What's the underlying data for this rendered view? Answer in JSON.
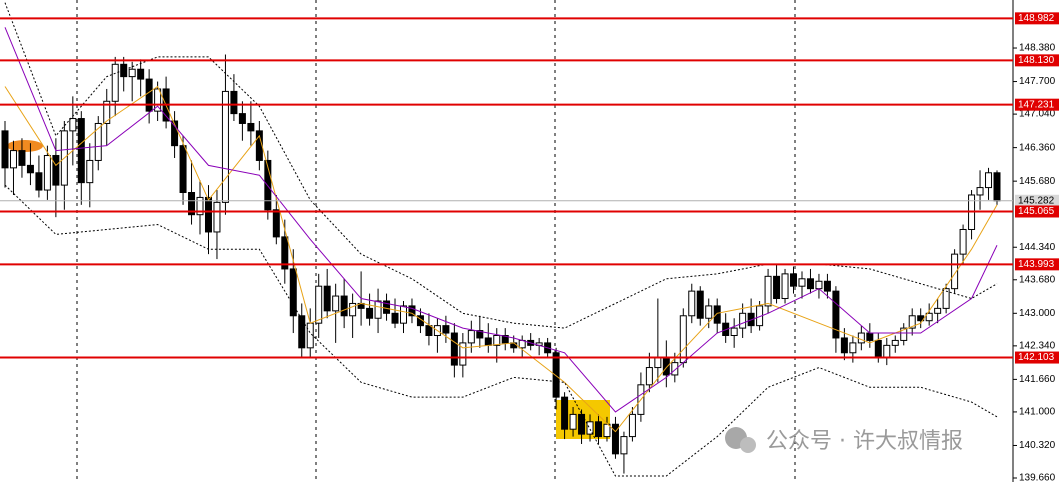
{
  "chart_data": {
    "type": "candlestick",
    "ylim": [
      139.579,
      149.354
    ],
    "yticks": [
      {
        "value": 148.38,
        "label": "148.380"
      },
      {
        "value": 147.7,
        "label": "147.700"
      },
      {
        "value": 147.04,
        "label": "147.040"
      },
      {
        "value": 146.36,
        "label": "146.360"
      },
      {
        "value": 145.68,
        "label": "145.680"
      },
      {
        "value": 144.34,
        "label": "144.340"
      },
      {
        "value": 143.68,
        "label": "143.680"
      },
      {
        "value": 143.0,
        "label": "143.000"
      },
      {
        "value": 142.34,
        "label": "142.340"
      },
      {
        "value": 141.66,
        "label": "141.660"
      },
      {
        "value": 141.0,
        "label": "141.000"
      },
      {
        "value": 140.32,
        "label": "140.320"
      },
      {
        "value": 139.66,
        "label": "139.660"
      }
    ],
    "levels": [
      {
        "value": 148.982,
        "label": "148.982"
      },
      {
        "value": 148.13,
        "label": "148.130"
      },
      {
        "value": 147.231,
        "label": "147.231"
      },
      {
        "value": 145.065,
        "label": "145.065"
      },
      {
        "value": 143.993,
        "label": "143.993"
      },
      {
        "value": 142.103,
        "label": "142.103"
      }
    ],
    "level_color": "#e00000",
    "current_price": {
      "value": 145.282,
      "label": "145.282"
    },
    "bull_color": "#ffffff",
    "bear_color": "#000000",
    "ohlc": [
      [
        146.7,
        146.9,
        145.55,
        145.95
      ],
      [
        145.95,
        146.5,
        145.4,
        146.3
      ],
      [
        146.3,
        146.55,
        145.75,
        146.0
      ],
      [
        146.0,
        146.45,
        145.6,
        145.85
      ],
      [
        145.85,
        146.2,
        145.35,
        145.5
      ],
      [
        145.5,
        146.4,
        145.3,
        146.2
      ],
      [
        146.2,
        146.55,
        144.95,
        145.6
      ],
      [
        145.6,
        146.9,
        145.1,
        146.7
      ],
      [
        146.7,
        147.4,
        146.0,
        146.95
      ],
      [
        146.95,
        147.1,
        145.2,
        145.65
      ],
      [
        145.65,
        146.45,
        145.15,
        146.1
      ],
      [
        146.1,
        147.0,
        145.9,
        146.85
      ],
      [
        146.85,
        147.55,
        146.4,
        147.3
      ],
      [
        147.3,
        148.2,
        147.0,
        148.05
      ],
      [
        148.05,
        148.2,
        147.5,
        147.8
      ],
      [
        147.8,
        148.1,
        147.3,
        147.95
      ],
      [
        147.95,
        148.15,
        147.4,
        147.75
      ],
      [
        147.75,
        147.95,
        146.85,
        147.1
      ],
      [
        147.1,
        147.7,
        146.9,
        147.55
      ],
      [
        147.55,
        147.8,
        146.75,
        146.9
      ],
      [
        146.9,
        147.1,
        146.15,
        146.4
      ],
      [
        146.4,
        146.6,
        145.2,
        145.45
      ],
      [
        145.45,
        146.1,
        144.8,
        145.0
      ],
      [
        145.0,
        145.7,
        144.6,
        145.35
      ],
      [
        145.35,
        145.6,
        144.2,
        144.65
      ],
      [
        144.65,
        145.5,
        144.1,
        145.25
      ],
      [
        145.25,
        148.25,
        145.0,
        147.5
      ],
      [
        147.5,
        147.85,
        146.9,
        147.05
      ],
      [
        147.05,
        147.3,
        146.5,
        146.85
      ],
      [
        146.85,
        147.3,
        146.4,
        146.7
      ],
      [
        146.7,
        146.9,
        145.9,
        146.1
      ],
      [
        146.1,
        146.3,
        144.9,
        145.1
      ],
      [
        145.1,
        145.4,
        144.4,
        144.55
      ],
      [
        144.55,
        144.9,
        143.6,
        143.9
      ],
      [
        143.9,
        144.3,
        142.6,
        142.95
      ],
      [
        142.95,
        143.2,
        142.1,
        142.3
      ],
      [
        142.3,
        143.1,
        142.1,
        142.8
      ],
      [
        142.8,
        143.8,
        142.5,
        143.55
      ],
      [
        143.55,
        143.9,
        142.9,
        143.05
      ],
      [
        143.05,
        143.6,
        142.4,
        143.35
      ],
      [
        143.35,
        143.7,
        142.7,
        142.95
      ],
      [
        142.95,
        143.4,
        142.5,
        143.2
      ],
      [
        143.2,
        143.85,
        142.75,
        143.1
      ],
      [
        143.1,
        143.4,
        142.75,
        142.9
      ],
      [
        142.9,
        143.5,
        142.6,
        143.25
      ],
      [
        143.25,
        143.4,
        142.85,
        143.0
      ],
      [
        143.0,
        143.3,
        142.7,
        142.8
      ],
      [
        142.8,
        143.25,
        142.6,
        143.15
      ],
      [
        143.15,
        143.3,
        142.8,
        142.95
      ],
      [
        142.95,
        143.1,
        142.6,
        142.75
      ],
      [
        142.75,
        143.0,
        142.35,
        142.55
      ],
      [
        142.55,
        142.9,
        142.2,
        142.75
      ],
      [
        142.75,
        142.95,
        142.4,
        142.6
      ],
      [
        142.6,
        142.8,
        141.7,
        141.95
      ],
      [
        141.95,
        142.6,
        141.7,
        142.4
      ],
      [
        142.4,
        142.85,
        142.2,
        142.65
      ],
      [
        142.65,
        142.95,
        142.3,
        142.5
      ],
      [
        142.5,
        142.8,
        142.2,
        142.35
      ],
      [
        142.35,
        142.7,
        142.0,
        142.55
      ],
      [
        142.55,
        142.7,
        142.25,
        142.4
      ],
      [
        142.4,
        142.55,
        142.2,
        142.3
      ],
      [
        142.3,
        142.55,
        142.1,
        142.45
      ],
      [
        142.45,
        142.6,
        142.25,
        142.35
      ],
      [
        142.35,
        142.5,
        142.15,
        142.4
      ],
      [
        142.4,
        142.5,
        142.1,
        142.2
      ],
      [
        142.2,
        142.3,
        141.05,
        141.3
      ],
      [
        141.3,
        141.4,
        140.45,
        140.65
      ],
      [
        140.65,
        141.1,
        140.5,
        140.95
      ],
      [
        140.95,
        141.05,
        140.35,
        140.55
      ],
      [
        140.55,
        140.95,
        140.4,
        140.8
      ],
      [
        140.8,
        140.95,
        140.35,
        140.5
      ],
      [
        140.5,
        140.9,
        140.4,
        140.75
      ],
      [
        140.75,
        140.9,
        140.05,
        140.15
      ],
      [
        140.15,
        140.6,
        139.75,
        140.5
      ],
      [
        140.5,
        141.1,
        140.4,
        140.95
      ],
      [
        140.95,
        141.8,
        140.8,
        141.55
      ],
      [
        141.55,
        142.2,
        141.4,
        141.9
      ],
      [
        141.9,
        143.3,
        141.6,
        142.1
      ],
      [
        142.1,
        142.45,
        141.5,
        141.75
      ],
      [
        141.75,
        142.2,
        141.6,
        142.0
      ],
      [
        142.0,
        143.1,
        141.9,
        142.95
      ],
      [
        142.95,
        143.6,
        142.8,
        143.45
      ],
      [
        143.45,
        143.55,
        142.75,
        142.9
      ],
      [
        142.9,
        143.3,
        142.7,
        143.15
      ],
      [
        143.15,
        143.3,
        142.6,
        142.8
      ],
      [
        142.8,
        143.0,
        142.4,
        142.55
      ],
      [
        142.55,
        142.9,
        142.3,
        142.7
      ],
      [
        142.7,
        143.2,
        142.5,
        143.0
      ],
      [
        143.0,
        143.3,
        142.6,
        142.75
      ],
      [
        142.75,
        143.25,
        142.65,
        143.15
      ],
      [
        143.15,
        143.9,
        143.0,
        143.75
      ],
      [
        143.75,
        144.0,
        143.2,
        143.3
      ],
      [
        143.3,
        143.9,
        143.2,
        143.8
      ],
      [
        143.8,
        143.95,
        143.4,
        143.55
      ],
      [
        143.55,
        143.85,
        143.3,
        143.7
      ],
      [
        143.7,
        143.9,
        143.4,
        143.5
      ],
      [
        143.5,
        143.8,
        143.3,
        143.65
      ],
      [
        143.65,
        143.8,
        143.3,
        143.45
      ],
      [
        143.45,
        143.55,
        142.2,
        142.5
      ],
      [
        142.5,
        142.7,
        142.05,
        142.2
      ],
      [
        142.2,
        142.55,
        142.0,
        142.4
      ],
      [
        142.4,
        142.75,
        142.25,
        142.6
      ],
      [
        142.6,
        142.8,
        142.3,
        142.45
      ],
      [
        142.45,
        142.6,
        142.0,
        142.1
      ],
      [
        142.1,
        142.5,
        141.95,
        142.35
      ],
      [
        142.35,
        142.55,
        142.2,
        142.45
      ],
      [
        142.45,
        142.8,
        142.35,
        142.7
      ],
      [
        142.7,
        143.1,
        142.55,
        142.95
      ],
      [
        142.95,
        143.1,
        142.7,
        142.85
      ],
      [
        142.85,
        143.2,
        142.75,
        143.0
      ],
      [
        143.0,
        143.3,
        142.8,
        143.1
      ],
      [
        143.1,
        143.6,
        143.0,
        143.5
      ],
      [
        143.5,
        144.3,
        143.4,
        144.2
      ],
      [
        144.2,
        144.8,
        144.0,
        144.7
      ],
      [
        144.7,
        145.5,
        144.5,
        145.4
      ],
      [
        145.4,
        145.9,
        145.1,
        145.55
      ],
      [
        145.55,
        145.95,
        145.3,
        145.85
      ],
      [
        145.85,
        145.9,
        145.2,
        145.282
      ]
    ],
    "indicators": [
      {
        "color": "#e8a317",
        "style": "solid",
        "x": [
          0,
          6,
          12,
          18,
          24,
          30,
          36,
          42,
          48,
          54,
          60,
          66,
          72,
          78,
          84,
          90,
          96,
          102,
          108,
          114,
          117
        ],
        "values": [
          147.6,
          146.0,
          146.9,
          147.6,
          145.3,
          146.6,
          142.8,
          143.2,
          143.0,
          142.3,
          142.4,
          141.6,
          140.6,
          141.9,
          143.0,
          143.2,
          142.8,
          142.4,
          142.8,
          144.3,
          145.2
        ]
      },
      {
        "color": "#8a00b8",
        "style": "solid",
        "x": [
          0,
          6,
          12,
          18,
          24,
          30,
          36,
          42,
          48,
          54,
          60,
          66,
          72,
          78,
          84,
          90,
          96,
          102,
          108,
          114,
          117
        ],
        "values": [
          148.8,
          146.3,
          146.4,
          147.2,
          146.0,
          145.8,
          144.5,
          143.3,
          143.1,
          142.7,
          142.5,
          142.2,
          141.0,
          141.7,
          142.6,
          143.0,
          143.5,
          142.6,
          142.6,
          143.3,
          144.38
        ]
      },
      {
        "color": "#000000",
        "style": "dotted",
        "x": [
          0,
          6,
          12,
          18,
          24,
          30,
          36,
          42,
          48,
          54,
          60,
          66,
          72,
          78,
          84,
          90,
          96,
          102,
          108,
          114,
          117
        ],
        "values": [
          149.3,
          146.6,
          147.8,
          148.2,
          148.2,
          147.2,
          145.3,
          144.2,
          143.7,
          143.0,
          142.8,
          142.7,
          143.2,
          143.7,
          143.8,
          144.0,
          144.0,
          143.9,
          143.6,
          143.3,
          143.6
        ]
      },
      {
        "color": "#000000",
        "style": "dotted",
        "x": [
          0,
          6,
          12,
          18,
          24,
          30,
          36,
          42,
          48,
          54,
          60,
          66,
          72,
          78,
          84,
          90,
          96,
          102,
          108,
          114,
          117
        ],
        "values": [
          145.6,
          144.6,
          144.7,
          144.8,
          144.3,
          144.3,
          142.6,
          141.6,
          141.3,
          141.3,
          141.7,
          141.6,
          139.7,
          139.7,
          140.5,
          141.5,
          141.9,
          141.5,
          141.5,
          141.2,
          140.9
        ]
      }
    ],
    "watermark": "公众号 · 许大叔情报"
  }
}
